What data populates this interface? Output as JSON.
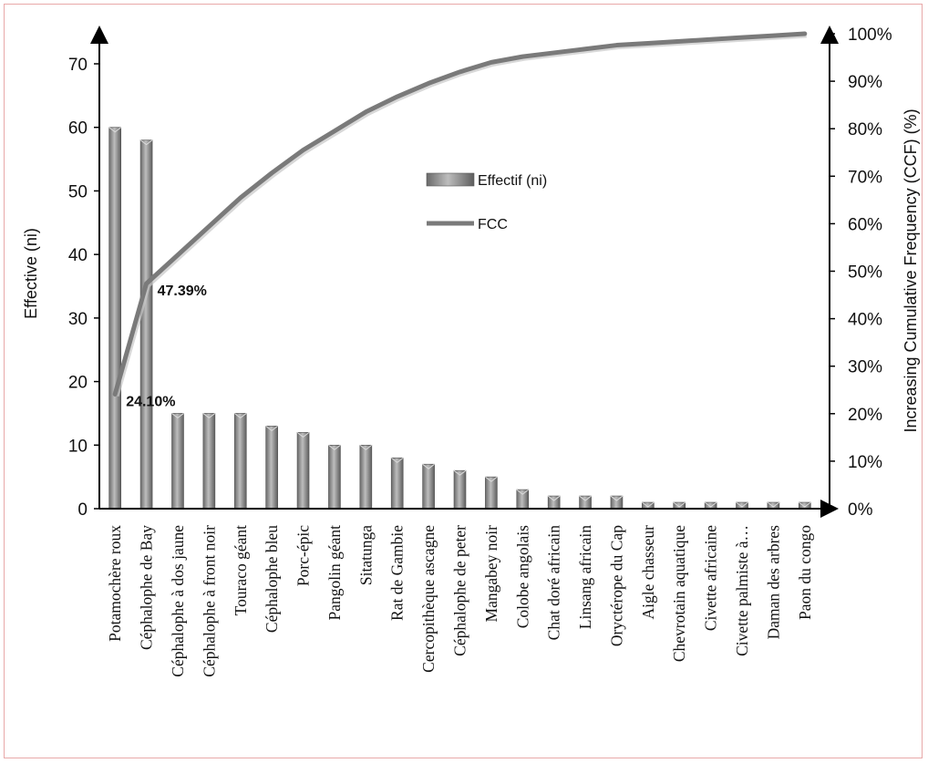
{
  "chart_data": {
    "type": "bar",
    "xlabel": "",
    "ylabel_left": "Effective (ni)",
    "ylabel_right": "Increasing Cumulative Frequency (CCF) (%)",
    "ylim_left": [
      0,
      75
    ],
    "yticks_left": [
      0,
      10,
      20,
      30,
      40,
      50,
      60,
      70
    ],
    "ylim_right": [
      0,
      100
    ],
    "yticks_right": [
      "0%",
      "10%",
      "20%",
      "30%",
      "40%",
      "50%",
      "60%",
      "70%",
      "80%",
      "90%",
      "100%"
    ],
    "categories": [
      "Potamochère roux",
      "Céphalophe de Bay",
      "Céphalophe à dos jaune",
      "Céphalophe à front noir",
      "Touraco géant",
      "Céphalophe bleu",
      "Porc-épic",
      "Pangolin géant",
      "Sitatunga",
      "Rat de Gambie",
      "Cercopithèque ascagne",
      "Céphalophe de peter",
      "Mangabey noir",
      "Colobe angolais",
      "Chat doré africain",
      "Linsang africain",
      "Oryctérope du Cap",
      "Aigle chasseur",
      "Chevrotain aquatique",
      "Civette africaine",
      "Civette palmiste à…",
      "Daman des arbres",
      "Paon du congo"
    ],
    "series": [
      {
        "name": "Effectif (ni)",
        "kind": "bar",
        "axis": "left",
        "color": "#7a7a7a",
        "values": [
          60,
          58,
          15,
          15,
          15,
          13,
          12,
          10,
          10,
          8,
          7,
          6,
          5,
          3,
          2,
          2,
          2,
          1,
          1,
          1,
          1,
          1,
          1
        ]
      },
      {
        "name": "FCC",
        "kind": "line",
        "axis": "right",
        "color": "#7a7a7a",
        "values": [
          24.1,
          47.39,
          53.41,
          59.44,
          65.46,
          70.68,
          75.5,
          79.52,
          83.53,
          86.75,
          89.56,
          91.97,
          93.98,
          95.18,
          95.98,
          96.79,
          97.59,
          97.99,
          98.39,
          98.8,
          99.2,
          99.6,
          100
        ]
      }
    ],
    "annotations": [
      {
        "text": "24.10%",
        "series": "FCC",
        "index": 0
      },
      {
        "text": "47.39%",
        "series": "FCC",
        "index": 1
      }
    ],
    "legend": [
      "Effectif (ni)",
      "FCC"
    ],
    "legend_position": "center",
    "grid": false
  }
}
